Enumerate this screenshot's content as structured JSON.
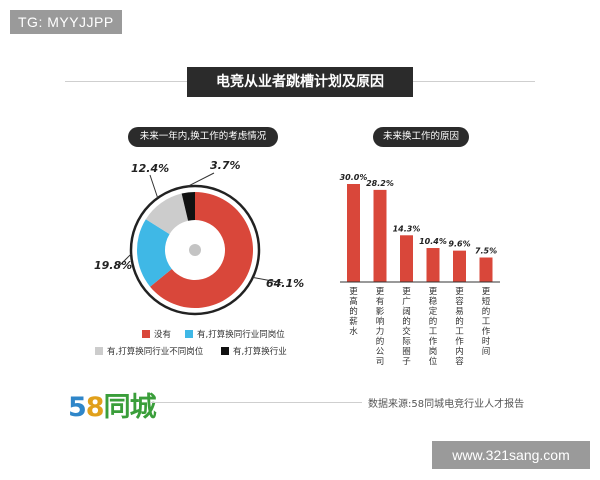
{
  "watermark_tag": "TG: MYYJJPP",
  "header": {
    "title": "电竞从业者跳槽计划及原因"
  },
  "footer": {
    "logo_5": "5",
    "logo_8": "8",
    "logo_text": "同城",
    "source": "数据来源:58同城电竞行业人才报告",
    "site_watermark": "www.321sang.com"
  },
  "colors": {
    "red": "#d9473a",
    "blue": "#3fb8e6",
    "gray": "#cccccc",
    "black": "#111111",
    "dark": "#2b2b2b"
  },
  "chart_data": [
    {
      "type": "pie",
      "style": "donut",
      "title": "未来一年内,换工作的考虑情况",
      "slices": [
        {
          "label": "没有",
          "value": 64.1,
          "display": "64.1%",
          "color": "#d9473a"
        },
        {
          "label": "有,打算换同行业同岗位",
          "value": 19.8,
          "display": "19.8%",
          "color": "#3fb8e6"
        },
        {
          "label": "有,打算换同行业不同岗位",
          "value": 12.4,
          "display": "12.4%",
          "color": "#cccccc"
        },
        {
          "label": "有,打算换行业",
          "value": 3.7,
          "display": "3.7%",
          "color": "#111111"
        }
      ],
      "legend_position": "bottom"
    },
    {
      "type": "bar",
      "title": "未来换工作的原因",
      "categories": [
        "更高的薪水",
        "更有影响力的公司",
        "更广阔的交际圈子",
        "更稳定的工作岗位",
        "更容易的工作内容",
        "更短的工作时间"
      ],
      "values": [
        30.0,
        28.2,
        14.3,
        10.4,
        9.6,
        7.5
      ],
      "value_labels": [
        "30.0%",
        "28.2%",
        "14.3%",
        "10.4%",
        "9.6%",
        "7.5%"
      ],
      "color": "#d9473a",
      "ylim": [
        0,
        30
      ]
    }
  ]
}
